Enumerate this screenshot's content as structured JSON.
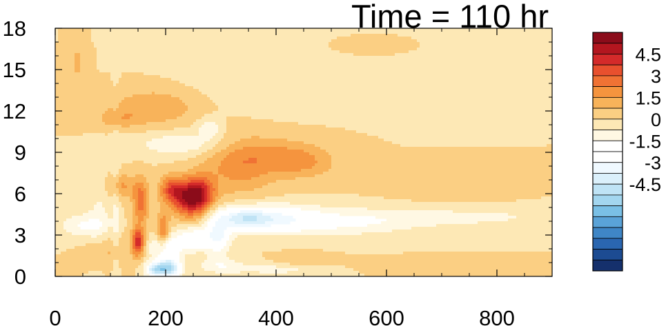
{
  "chart_data": {
    "type": "heatmap",
    "title": "Time = 110 hr",
    "xlabel": "",
    "ylabel": "",
    "xlim": [
      0,
      900
    ],
    "ylim": [
      0,
      18
    ],
    "x_ticks": [
      "0",
      "200",
      "400",
      "600",
      "800"
    ],
    "y_ticks": [
      "0",
      "3",
      "6",
      "9",
      "12",
      "15",
      "18"
    ],
    "colorbar": {
      "placement": "right",
      "range": [
        -6,
        6
      ],
      "step": 0.75,
      "labels": [
        "4.5",
        "3",
        "1.5",
        "0",
        "-1.5",
        "-3",
        "-4.5"
      ],
      "colors": [
        "#8b0c1a",
        "#b3161f",
        "#d42a2a",
        "#e8502e",
        "#f07234",
        "#f5943e",
        "#f8b35a",
        "#fbcf83",
        "#fde8b5",
        "#fff8e3",
        "#ffffff",
        "#ffffff",
        "#f0f9ff",
        "#dbf0fb",
        "#bfe3f5",
        "#a3d6ef",
        "#7ac0e6",
        "#5aa3d8",
        "#3f86c6",
        "#2a66b0",
        "#1c4b92",
        "#15306c"
      ]
    },
    "features": [
      {
        "x": 245,
        "y": 5.6,
        "sx": 22,
        "sy": 0.9,
        "value": 4.8
      },
      {
        "x": 212,
        "y": 6.3,
        "sx": 16,
        "sy": 0.7,
        "value": 3.0
      },
      {
        "x": 265,
        "y": 6.2,
        "sx": 18,
        "sy": 0.8,
        "value": 2.5
      },
      {
        "x": 155,
        "y": 5.4,
        "sx": 10,
        "sy": 1.1,
        "value": 2.8
      },
      {
        "x": 150,
        "y": 2.5,
        "sx": 8,
        "sy": 0.7,
        "value": 4.3
      },
      {
        "x": 195,
        "y": 3.2,
        "sx": 8,
        "sy": 1.0,
        "value": 2.6
      },
      {
        "x": 120,
        "y": 6.6,
        "sx": 20,
        "sy": 0.6,
        "value": 1.6
      },
      {
        "x": 330,
        "y": 8.0,
        "sx": 45,
        "sy": 1.5,
        "value": 1.7
      },
      {
        "x": 400,
        "y": 8.7,
        "sx": 55,
        "sy": 1.0,
        "value": 1.2
      },
      {
        "x": 450,
        "y": 8.3,
        "sx": 40,
        "sy": 0.8,
        "value": 1.2
      },
      {
        "x": 180,
        "y": 12.3,
        "sx": 55,
        "sy": 0.9,
        "value": 1.5
      },
      {
        "x": 115,
        "y": 11.4,
        "sx": 30,
        "sy": 0.5,
        "value": 1.0
      },
      {
        "x": 95,
        "y": 1.8,
        "sx": 25,
        "sy": 0.8,
        "value": 1.0
      },
      {
        "x": 40,
        "y": 15.5,
        "sx": 10,
        "sy": 1.2,
        "value": 0.9
      },
      {
        "x": 600,
        "y": 7.2,
        "sx": 60,
        "sy": 0.5,
        "value": 0.7
      },
      {
        "x": 730,
        "y": 6.2,
        "sx": 70,
        "sy": 0.6,
        "value": 0.6
      },
      {
        "x": 450,
        "y": 1.2,
        "sx": 30,
        "sy": 0.3,
        "value": 0.8
      },
      {
        "x": 700,
        "y": 0.8,
        "sx": 90,
        "sy": 0.3,
        "value": 0.6
      },
      {
        "x": 560,
        "y": 16.7,
        "sx": 30,
        "sy": 0.3,
        "value": 0.5
      },
      {
        "x": 205,
        "y": 0.6,
        "sx": 15,
        "sy": 0.5,
        "value": -5.4
      },
      {
        "x": 180,
        "y": 0.5,
        "sx": 12,
        "sy": 0.35,
        "value": -4.0
      },
      {
        "x": 200,
        "y": 2.1,
        "sx": 20,
        "sy": 0.6,
        "value": -2.6
      },
      {
        "x": 340,
        "y": 4.2,
        "sx": 35,
        "sy": 0.6,
        "value": -3.6
      },
      {
        "x": 295,
        "y": 3.0,
        "sx": 15,
        "sy": 0.9,
        "value": -3.0
      },
      {
        "x": 250,
        "y": 2.7,
        "sx": 22,
        "sy": 0.6,
        "value": -2.6
      },
      {
        "x": 410,
        "y": 4.2,
        "sx": 50,
        "sy": 0.7,
        "value": -2.2
      },
      {
        "x": 520,
        "y": 3.9,
        "sx": 90,
        "sy": 0.7,
        "value": -1.4
      },
      {
        "x": 740,
        "y": 4.3,
        "sx": 160,
        "sy": 0.6,
        "value": -0.9
      },
      {
        "x": 230,
        "y": 9.6,
        "sx": 60,
        "sy": 0.6,
        "value": -1.4
      },
      {
        "x": 280,
        "y": 10.8,
        "sx": 15,
        "sy": 0.5,
        "value": -1.5
      },
      {
        "x": 50,
        "y": 3.7,
        "sx": 30,
        "sy": 0.6,
        "value": -1.6
      },
      {
        "x": 80,
        "y": 4.8,
        "sx": 15,
        "sy": 2.5,
        "value": -0.8
      },
      {
        "x": 300,
        "y": 0.8,
        "sx": 30,
        "sy": 0.4,
        "value": -1.3
      },
      {
        "x": 400,
        "y": 0.5,
        "sx": 60,
        "sy": 0.3,
        "value": -1.0
      },
      {
        "x": 110,
        "y": 4.5,
        "sx": 5,
        "sy": 5.0,
        "value": -0.8
      },
      {
        "x": 380,
        "y": 14.0,
        "sx": 100,
        "sy": 1.5,
        "value": -0.5
      },
      {
        "x": 230,
        "y": 17.4,
        "sx": 60,
        "sy": 0.4,
        "value": -0.5
      }
    ]
  }
}
